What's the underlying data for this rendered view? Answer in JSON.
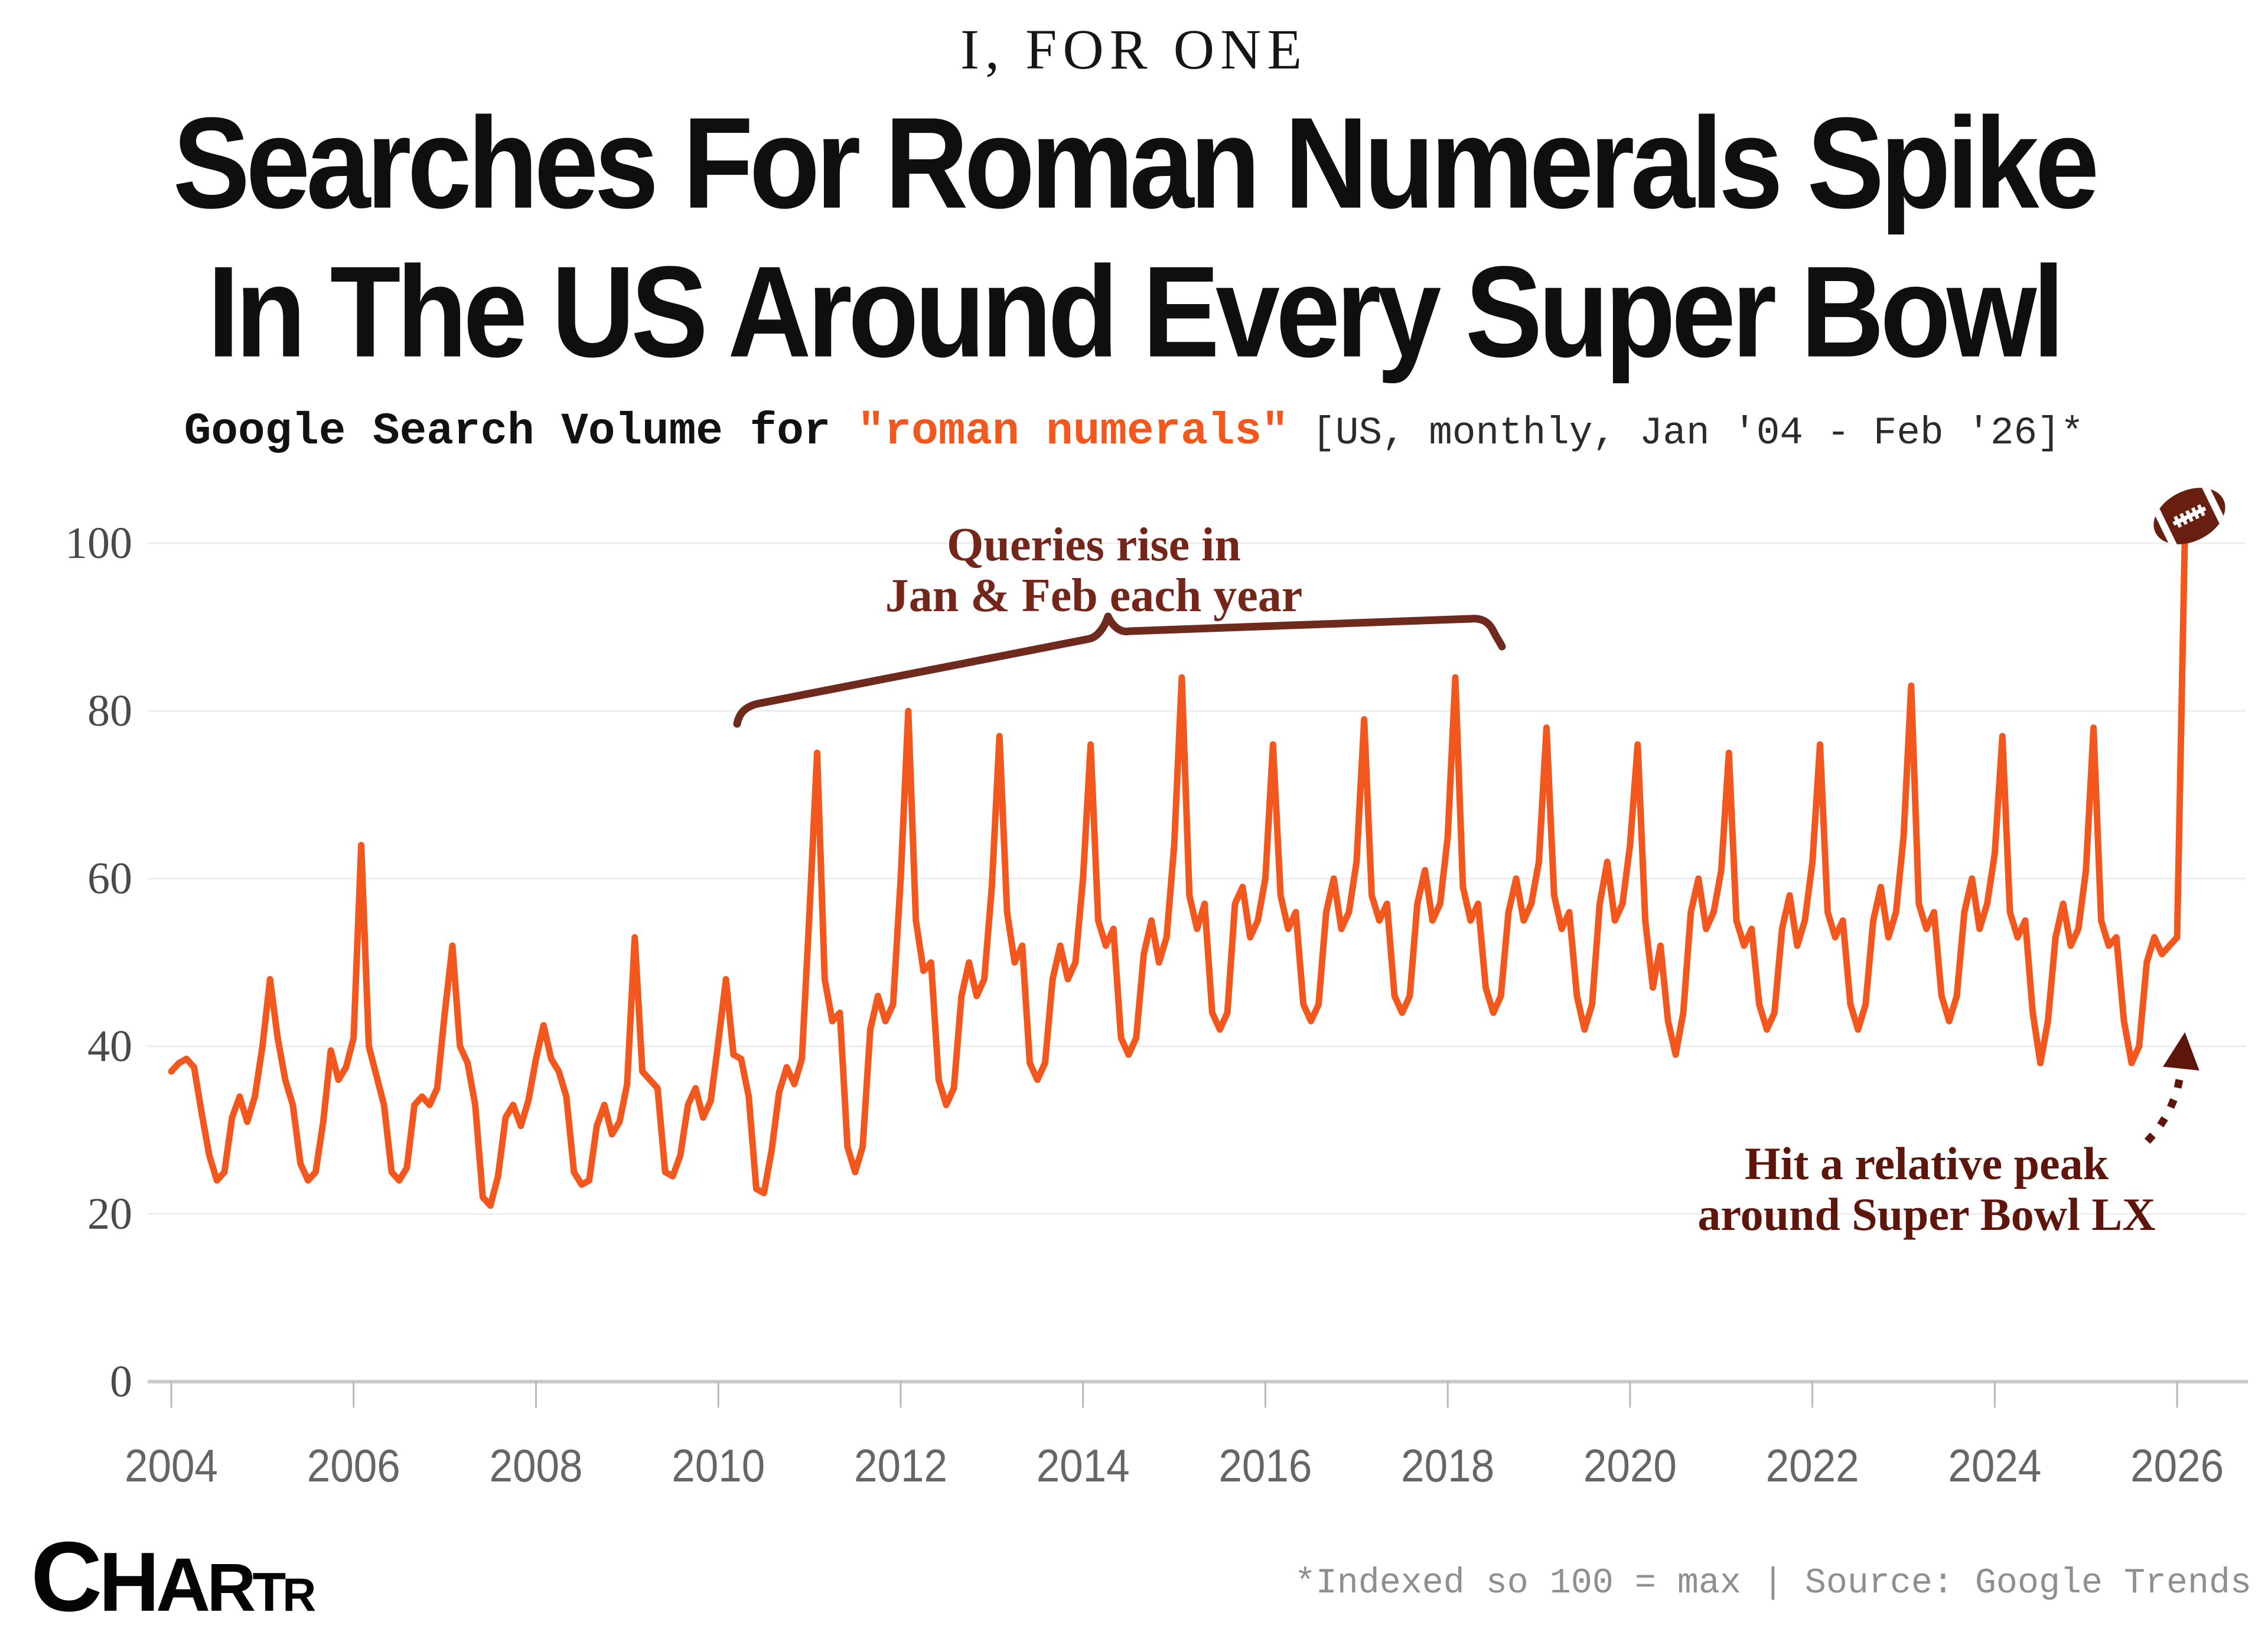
{
  "header": {
    "kicker": "I, FOR ONE",
    "title_line1": "Searches For Roman Numerals Spike",
    "title_line2": "In The US Around Every Super Bowl",
    "subtitle_prefix": "Google Search Volume for ",
    "subtitle_term": "\"roman numerals\"",
    "subtitle_suffix": " [US, monthly, Jan '04 - Feb '26]*"
  },
  "annotations": {
    "brace_line1": "Queries rise in",
    "brace_line2": "Jan & Feb each year",
    "peak_line1": "Hit a relative peak",
    "peak_line2": "around Super Bowl LX"
  },
  "footer": {
    "logo": "CHARTR",
    "note": "*Indexed so 100 = max | Source: Google Trends"
  },
  "colors": {
    "line": "#f2571d",
    "grid": "#ececec",
    "axis": "#c9c9c9",
    "tick": "#b8b8b8",
    "y_label": "#4a4a4a",
    "x_label": "#666666",
    "brace": "#6e2a1c",
    "brace_text": "#74261a",
    "arrow": "#5e150b",
    "football": "#681f10"
  },
  "chart_data": {
    "type": "line",
    "title": "Google Search Volume for \"roman numerals\"",
    "series_name": "roman numerals (US search interest)",
    "frequency": "monthly",
    "x_start": "2004-01",
    "x_end": "2026-02",
    "ylim": [
      0,
      100
    ],
    "yticks": [
      0,
      20,
      40,
      60,
      80,
      100
    ],
    "xtick_years": [
      2004,
      2006,
      2008,
      2010,
      2012,
      2014,
      2016,
      2018,
      2020,
      2022,
      2024,
      2026
    ],
    "grid": true,
    "legend": false,
    "note": "*Indexed so 100 = max",
    "source": "Google Trends",
    "values": [
      37,
      38,
      38.5,
      37.5,
      32,
      27,
      24,
      25,
      31.5,
      34,
      31,
      34,
      40,
      48,
      41,
      36,
      33,
      26,
      24,
      25,
      31,
      39.5,
      36,
      37.5,
      41,
      64,
      40,
      36.5,
      33,
      25,
      24,
      25.5,
      33,
      34,
      33,
      35,
      44,
      52,
      40,
      38,
      33,
      22,
      21,
      24.5,
      31.5,
      33,
      30.5,
      33.5,
      38.5,
      42.5,
      38.5,
      37,
      34,
      25,
      23.5,
      24,
      30.5,
      33,
      29.5,
      31,
      35.5,
      53,
      37,
      36,
      35,
      25,
      24.5,
      27,
      33,
      35,
      31.5,
      33.5,
      40.5,
      48,
      39,
      38.5,
      34,
      23,
      22.5,
      27.5,
      34.5,
      37.5,
      35.5,
      38.5,
      56,
      75,
      48,
      43,
      44,
      28,
      25,
      28,
      42,
      46,
      43,
      45,
      60,
      80,
      55,
      49,
      50,
      36,
      33,
      35,
      46,
      50,
      46,
      48,
      59,
      77,
      56,
      50,
      52,
      38,
      36,
      38,
      48,
      52,
      48,
      50,
      60,
      76,
      55,
      52,
      54,
      41,
      39,
      41,
      51,
      55,
      50,
      53,
      64,
      84,
      58,
      54,
      57,
      44,
      42,
      44,
      57,
      59,
      53,
      55,
      60,
      76,
      58,
      54,
      56,
      45,
      43,
      45,
      56,
      60,
      54,
      56,
      62,
      79,
      58,
      55,
      57,
      46,
      44,
      46,
      57,
      61,
      55,
      57,
      65,
      84,
      59,
      55,
      57,
      47,
      44,
      46,
      56,
      60,
      55,
      57,
      62,
      78,
      58,
      54,
      56,
      46,
      42,
      45,
      57,
      62,
      55,
      57,
      64,
      76,
      55,
      47,
      52,
      43,
      39,
      44,
      56,
      60,
      54,
      56,
      61,
      75,
      55,
      52,
      54,
      45,
      42,
      44,
      54,
      58,
      52,
      55,
      62,
      76,
      56,
      53,
      55,
      45,
      42,
      45,
      55,
      59,
      53,
      56,
      65,
      83,
      57,
      54,
      56,
      46,
      43,
      46,
      56,
      60,
      54,
      57,
      63,
      77,
      56,
      53,
      55,
      44,
      38,
      43,
      53,
      57,
      52,
      54,
      61,
      78,
      55,
      52,
      53,
      43,
      38,
      40,
      50,
      53,
      51,
      52,
      53,
      100
    ]
  }
}
